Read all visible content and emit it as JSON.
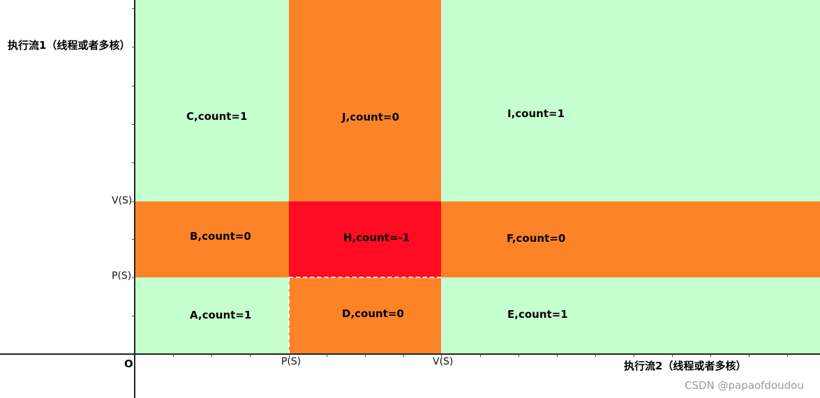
{
  "colors": {
    "green": "#c6ffd0",
    "orange": "#fd8329",
    "red": "#ff0b23",
    "axis": "#222222"
  },
  "axes": {
    "y_title": "执行流1（线程或者多核）",
    "x_title": "执行流2（线程或者多核）",
    "origin": "O",
    "y_ticks": {
      "p": "P(S)",
      "v": "V(S)"
    },
    "x_ticks": {
      "p": "P(S)",
      "v": "V(S)"
    }
  },
  "regions": [
    {
      "id": "A",
      "label": "A,count=1",
      "color": "green"
    },
    {
      "id": "B",
      "label": "B,count=0",
      "color": "orange"
    },
    {
      "id": "C",
      "label": "C,count=1",
      "color": "green"
    },
    {
      "id": "D",
      "label": "D,count=0",
      "color": "orange"
    },
    {
      "id": "E",
      "label": "E,count=1",
      "color": "green"
    },
    {
      "id": "F",
      "label": "F,count=0",
      "color": "orange"
    },
    {
      "id": "H",
      "label": "H,count=-1",
      "color": "red"
    },
    {
      "id": "I",
      "label": "I,count=1",
      "color": "green"
    },
    {
      "id": "J",
      "label": "J,count=0",
      "color": "orange"
    }
  ],
  "watermark": "CSDN @papaofdoudou"
}
